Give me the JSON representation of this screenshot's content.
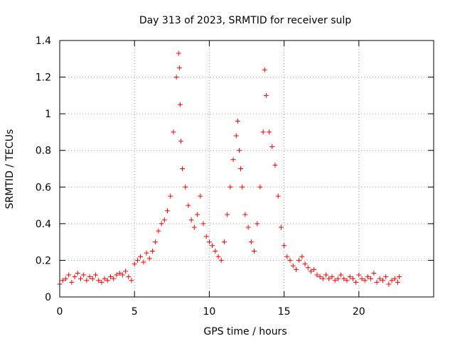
{
  "chart_data": {
    "type": "scatter",
    "title": "Day 313 of 2023, SRMTID for receiver sulp",
    "xlabel": "GPS time / hours",
    "ylabel": "SRMTID / TECUs",
    "xlim": [
      0,
      25
    ],
    "ylim": [
      0,
      1.4
    ],
    "xticks": [
      0,
      5,
      10,
      15,
      20
    ],
    "xtick_labels": [
      "0",
      "5",
      "10",
      "15",
      "20"
    ],
    "yticks": [
      0,
      0.2,
      0.4,
      0.6,
      0.8,
      1,
      1.2,
      1.4
    ],
    "ytick_labels": [
      "0",
      "0.2",
      "0.4",
      "0.6",
      "0.8",
      "1",
      "1.2",
      "1.4"
    ],
    "grid": true,
    "marker": "plus",
    "series": [
      {
        "name": "SRMTID",
        "color": "#ff0000",
        "x": [
          0.0,
          0.2,
          0.4,
          0.6,
          0.8,
          1.0,
          1.2,
          1.4,
          1.6,
          1.8,
          2.0,
          2.2,
          2.4,
          2.6,
          2.8,
          3.0,
          3.2,
          3.4,
          3.6,
          3.8,
          4.0,
          4.2,
          4.4,
          4.6,
          4.8,
          5.0,
          5.2,
          5.4,
          5.6,
          5.8,
          6.0,
          6.2,
          6.4,
          6.6,
          6.8,
          7.0,
          7.2,
          7.4,
          7.6,
          7.8,
          7.95,
          8.0,
          8.05,
          8.1,
          8.2,
          8.4,
          8.6,
          8.8,
          9.0,
          9.2,
          9.4,
          9.6,
          9.8,
          10.0,
          10.2,
          10.4,
          10.6,
          10.8,
          11.0,
          11.2,
          11.4,
          11.6,
          11.8,
          11.9,
          12.0,
          12.1,
          12.2,
          12.4,
          12.6,
          12.8,
          13.0,
          13.2,
          13.4,
          13.6,
          13.7,
          13.8,
          14.0,
          14.2,
          14.4,
          14.6,
          14.8,
          15.0,
          15.2,
          15.4,
          15.6,
          15.8,
          16.0,
          16.2,
          16.4,
          16.6,
          16.8,
          17.0,
          17.2,
          17.4,
          17.6,
          17.8,
          18.0,
          18.2,
          18.4,
          18.6,
          18.8,
          19.0,
          19.2,
          19.4,
          19.6,
          19.8,
          20.0,
          20.2,
          20.4,
          20.6,
          20.8,
          21.0,
          21.2,
          21.4,
          21.6,
          21.8,
          22.0,
          22.2,
          22.4,
          22.6,
          22.7
        ],
        "y": [
          0.07,
          0.09,
          0.1,
          0.12,
          0.08,
          0.11,
          0.13,
          0.1,
          0.12,
          0.09,
          0.11,
          0.1,
          0.12,
          0.09,
          0.08,
          0.1,
          0.09,
          0.11,
          0.1,
          0.12,
          0.13,
          0.12,
          0.14,
          0.11,
          0.09,
          0.18,
          0.2,
          0.22,
          0.19,
          0.24,
          0.21,
          0.25,
          0.3,
          0.36,
          0.4,
          0.42,
          0.47,
          0.55,
          0.9,
          1.2,
          1.33,
          1.25,
          1.05,
          0.85,
          0.7,
          0.6,
          0.5,
          0.42,
          0.38,
          0.45,
          0.55,
          0.4,
          0.33,
          0.3,
          0.28,
          0.25,
          0.22,
          0.2,
          0.3,
          0.45,
          0.6,
          0.75,
          0.88,
          0.96,
          0.8,
          0.7,
          0.6,
          0.45,
          0.38,
          0.3,
          0.25,
          0.4,
          0.6,
          0.9,
          1.24,
          1.1,
          0.9,
          0.82,
          0.72,
          0.55,
          0.38,
          0.28,
          0.22,
          0.2,
          0.17,
          0.15,
          0.2,
          0.22,
          0.18,
          0.16,
          0.14,
          0.15,
          0.12,
          0.11,
          0.1,
          0.12,
          0.1,
          0.11,
          0.09,
          0.1,
          0.12,
          0.1,
          0.09,
          0.11,
          0.1,
          0.08,
          0.12,
          0.1,
          0.09,
          0.11,
          0.1,
          0.13,
          0.08,
          0.1,
          0.09,
          0.11,
          0.07,
          0.09,
          0.1,
          0.08,
          0.11
        ]
      }
    ]
  }
}
